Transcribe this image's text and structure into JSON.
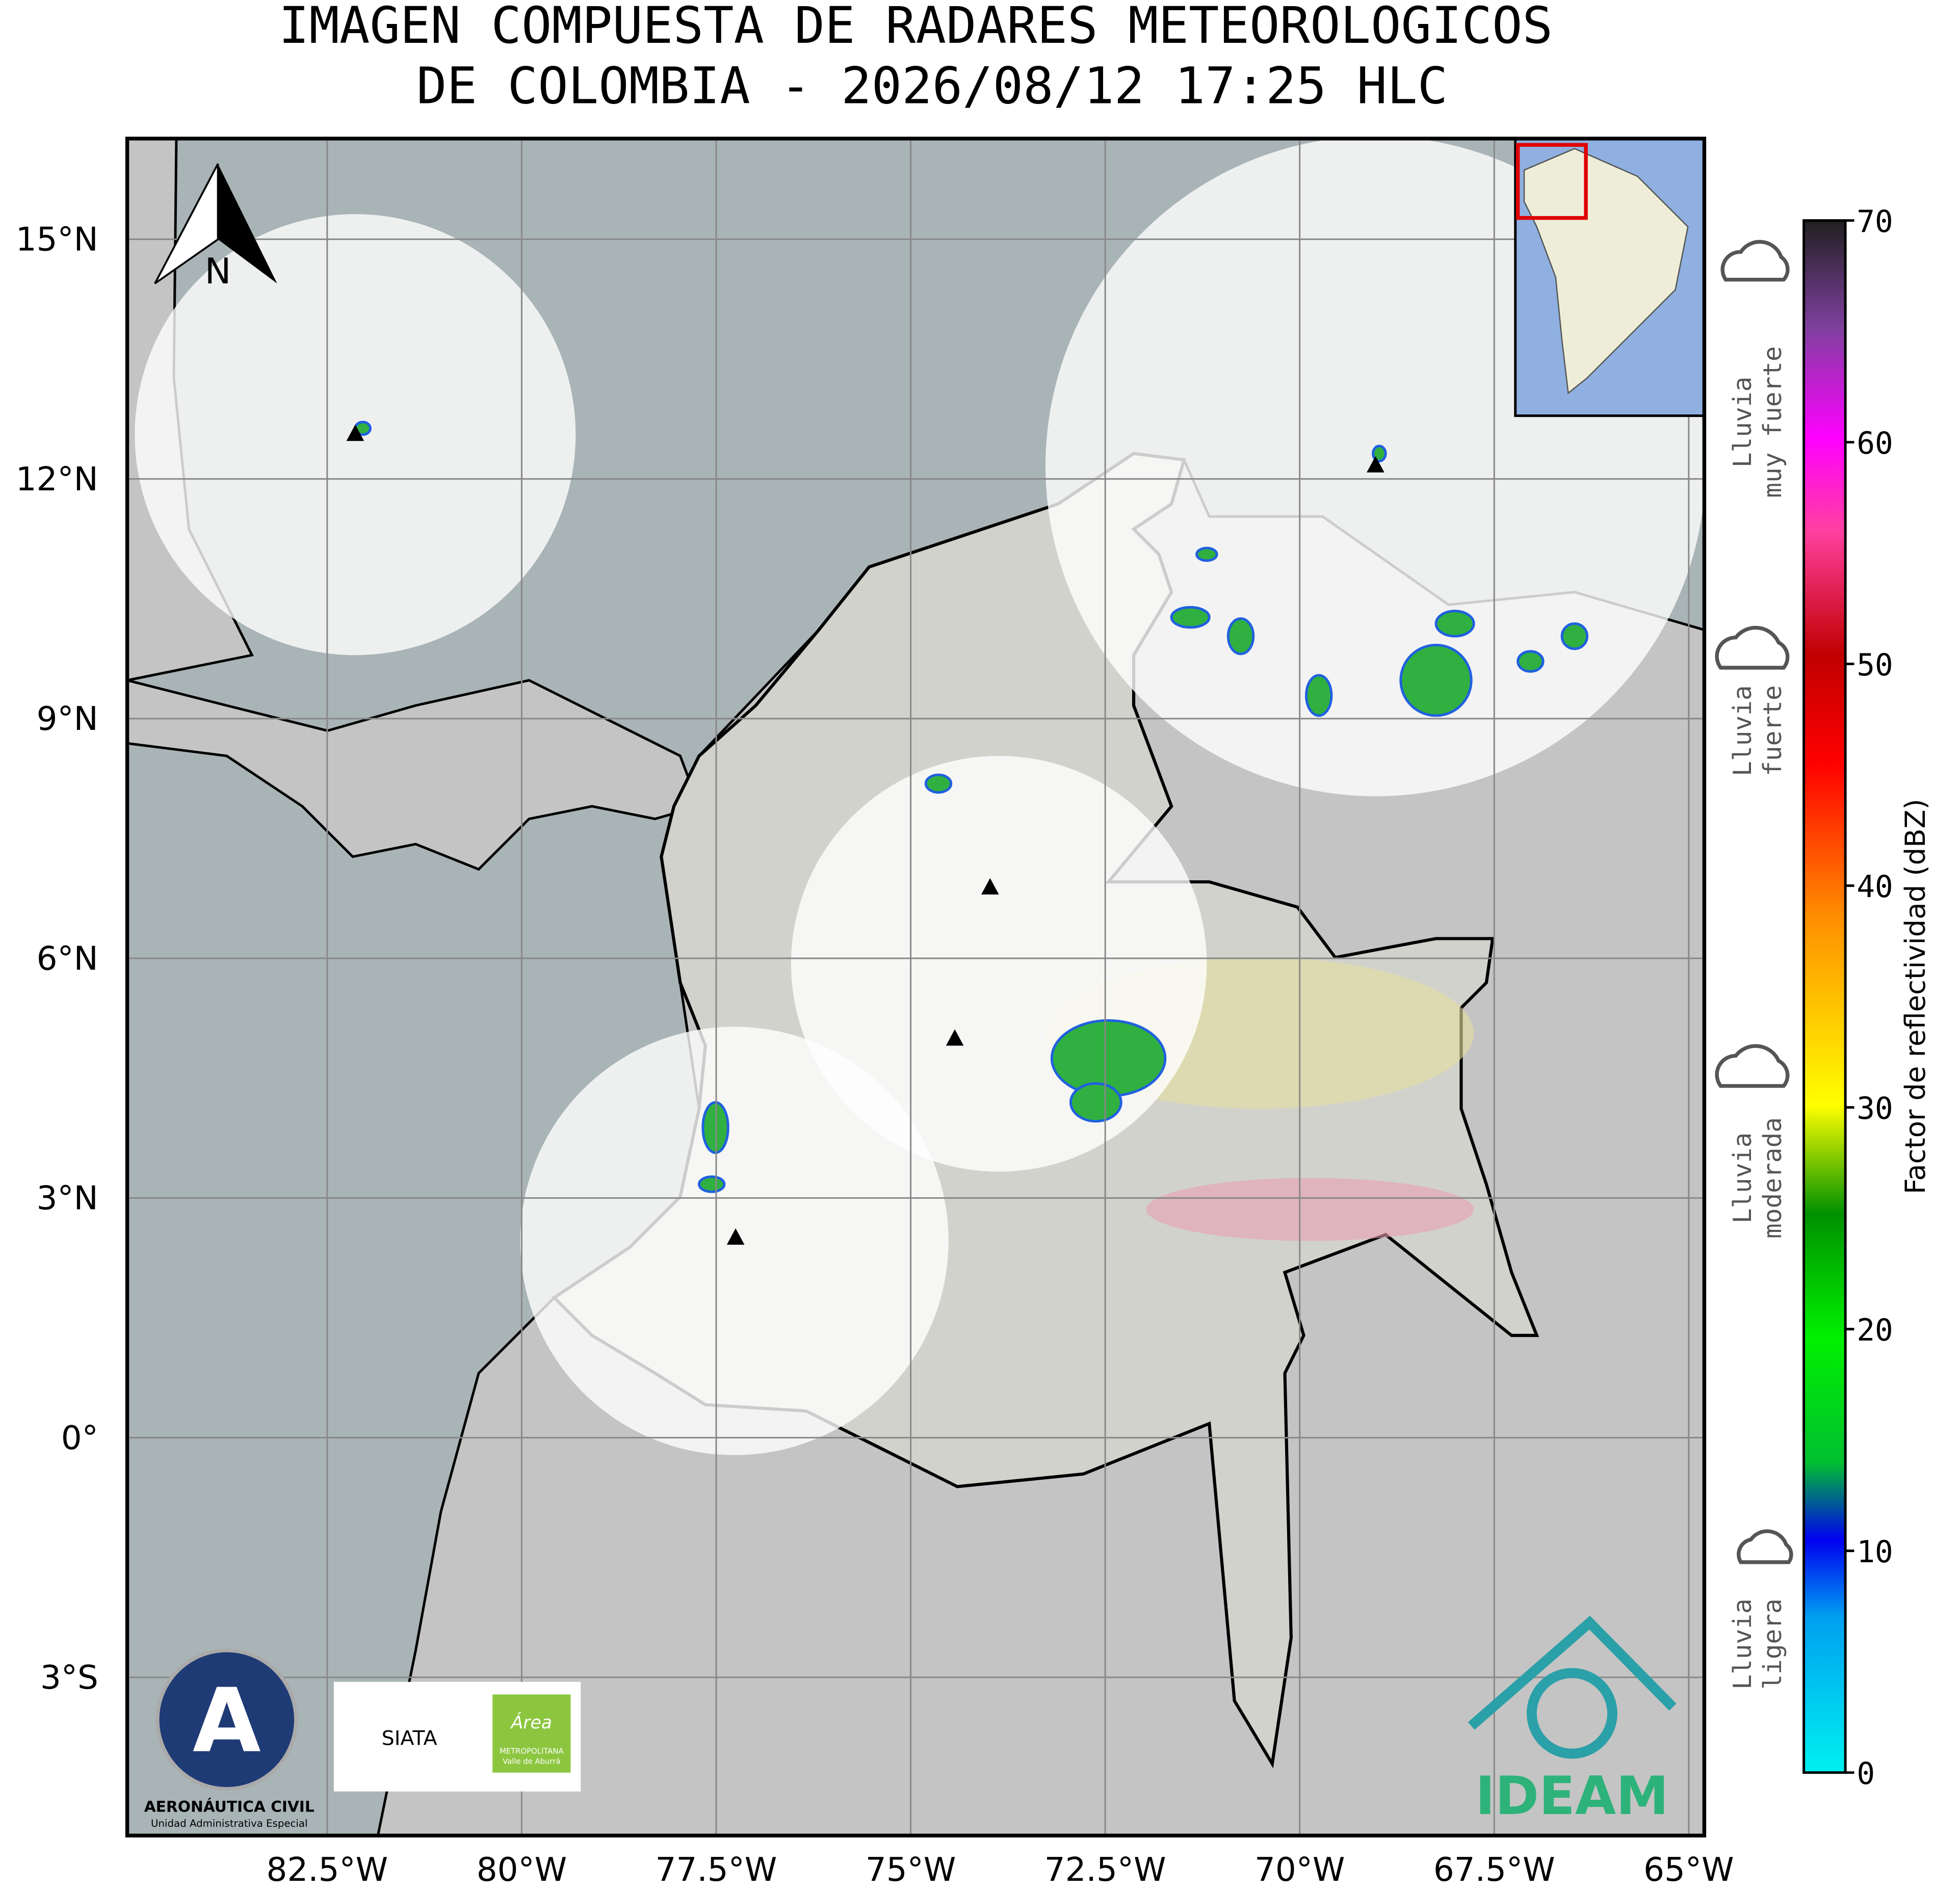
{
  "title": [
    "IMAGEN COMPUESTA DE RADARES METEOROLOGICOS",
    "DE COLOMBIA - 2026/08/12 17:25 HLC"
  ],
  "map": {
    "lon_range": [
      -85.07,
      -64.8
    ],
    "lat_range": [
      -4.98,
      16.26
    ],
    "grid": true,
    "lon_ticks": [
      {
        "value": -82.5,
        "label": "82.5°W"
      },
      {
        "value": -80,
        "label": "80°W"
      },
      {
        "value": -77.5,
        "label": "77.5°W"
      },
      {
        "value": -75,
        "label": "75°W"
      },
      {
        "value": -72.5,
        "label": "72.5°W"
      },
      {
        "value": -70,
        "label": "70°W"
      },
      {
        "value": -67.5,
        "label": "67.5°W"
      },
      {
        "value": -65,
        "label": "65°W"
      }
    ],
    "lat_ticks": [
      {
        "value": 15,
        "label": "15°N"
      },
      {
        "value": 12,
        "label": "12°N"
      },
      {
        "value": 9,
        "label": "9°N"
      },
      {
        "value": 6,
        "label": "6°N"
      },
      {
        "value": 3,
        "label": "3°N"
      },
      {
        "value": 0,
        "label": "0°"
      },
      {
        "value": -3,
        "label": "3°S"
      }
    ]
  },
  "north_label": "N",
  "colorbar": {
    "label": "Factor de reflectividad (dBZ)",
    "range": [
      0,
      70
    ],
    "ticks": [
      0,
      10,
      20,
      30,
      40,
      50,
      60,
      70
    ]
  },
  "rain_levels": [
    {
      "lines": [
        "Lluvia",
        "muy fuerte"
      ]
    },
    {
      "lines": [
        "Lluvia",
        "fuerte"
      ]
    },
    {
      "lines": [
        "Lluvia",
        "moderada"
      ]
    },
    {
      "lines": [
        "Lluvia",
        "ligera"
      ]
    }
  ],
  "logos": {
    "aerocivil": [
      "AERONÁUTICA CIVIL",
      "Unidad Administrativa Especial"
    ],
    "siata": "SIATA",
    "area": [
      "Área",
      "METROPOLITANA",
      "Valle de Aburrá"
    ],
    "ideam": "IDEAM"
  }
}
